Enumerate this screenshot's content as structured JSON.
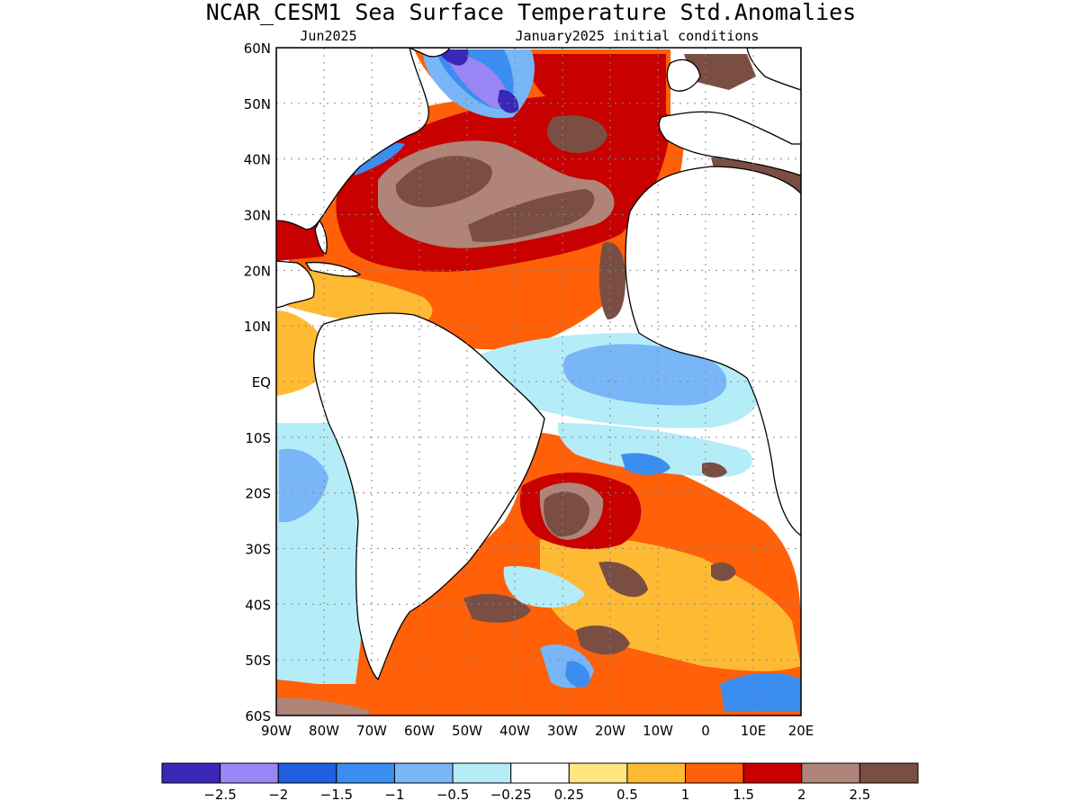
{
  "title": "NCAR_CESM1 Sea Surface Temperature Std.Anomalies",
  "subtitle_left": "Jun2025",
  "subtitle_right": "January2025 initial conditions",
  "map": {
    "lon_range": [
      -90,
      20
    ],
    "lat_range": [
      -60,
      60
    ],
    "lat_labels": [
      {
        "lat": 60,
        "text": "60N"
      },
      {
        "lat": 50,
        "text": "50N"
      },
      {
        "lat": 40,
        "text": "40N"
      },
      {
        "lat": 30,
        "text": "30N"
      },
      {
        "lat": 20,
        "text": "20N"
      },
      {
        "lat": 10,
        "text": "10N"
      },
      {
        "lat": 0,
        "text": "EQ"
      },
      {
        "lat": -10,
        "text": "10S"
      },
      {
        "lat": -20,
        "text": "20S"
      },
      {
        "lat": -30,
        "text": "30S"
      },
      {
        "lat": -40,
        "text": "40S"
      },
      {
        "lat": -50,
        "text": "50S"
      },
      {
        "lat": -60,
        "text": "60S"
      }
    ],
    "lon_labels": [
      {
        "lon": -90,
        "text": "90W"
      },
      {
        "lon": -80,
        "text": "80W"
      },
      {
        "lon": -70,
        "text": "70W"
      },
      {
        "lon": -60,
        "text": "60W"
      },
      {
        "lon": -50,
        "text": "50W"
      },
      {
        "lon": -40,
        "text": "40W"
      },
      {
        "lon": -30,
        "text": "30W"
      },
      {
        "lon": -20,
        "text": "20W"
      },
      {
        "lon": -10,
        "text": "10W"
      },
      {
        "lon": 0,
        "text": "0"
      },
      {
        "lon": 10,
        "text": "10E"
      },
      {
        "lon": 20,
        "text": "20E"
      }
    ],
    "gridlines": "dotted"
  },
  "colorbar": {
    "colors": [
      "#3a27b8",
      "#9b86f5",
      "#1f5fe0",
      "#3c8df0",
      "#78b6f8",
      "#b4ecf8",
      "#ffffff",
      "#ffe680",
      "#ffba34",
      "#ff6008",
      "#c80000",
      "#b08478",
      "#7a4e43"
    ],
    "labels": [
      "-2.5",
      "-2",
      "-1.5",
      "-1",
      "-0.5",
      "-0.25",
      "0.25",
      "0.5",
      "1",
      "1.5",
      "2",
      "2.5"
    ]
  },
  "chart_data": {
    "type": "heatmap",
    "title": "NCAR_CESM1 Sea Surface Temperature Std.Anomalies",
    "subtitle": "Jun2025",
    "note": "January2025 initial conditions",
    "x_range": [
      -90,
      20
    ],
    "y_range": [
      -60,
      60
    ],
    "levels": [
      -2.5,
      -2,
      -1.5,
      -1,
      -0.5,
      -0.25,
      0.25,
      0.5,
      1,
      1.5,
      2,
      2.5
    ],
    "anomaly_regions": [
      {
        "lon": -45,
        "lat": 35,
        "rx": 16,
        "ry": 7,
        "value": 2.7
      },
      {
        "lon": -30,
        "lat": 30,
        "rx": 14,
        "ry": 6,
        "value": 2.6
      },
      {
        "lon": -35,
        "lat": 33,
        "rx": 36,
        "ry": 14,
        "value": 2.1
      },
      {
        "lon": -25,
        "lat": 18,
        "rx": 30,
        "ry": 8,
        "value": 1.3
      },
      {
        "lon": -17,
        "lat": 20,
        "rx": 3,
        "ry": 6,
        "value": 2.7
      },
      {
        "lon": -86,
        "lat": 25,
        "rx": 5,
        "ry": 4,
        "value": 2.1
      },
      {
        "lon": -42,
        "lat": 53,
        "rx": 5,
        "ry": 4,
        "value": -2.1
      },
      {
        "lon": 7,
        "lat": 54,
        "rx": 8,
        "ry": 3,
        "value": 2.6
      },
      {
        "lon": 5,
        "lat": 39,
        "rx": 8,
        "ry": 3,
        "value": 2.6
      },
      {
        "lon": -20,
        "lat": 2,
        "rx": 14,
        "ry": 5,
        "value": -0.8
      },
      {
        "lon": -35,
        "lat": -23,
        "rx": 8,
        "ry": 6,
        "value": 2.7
      },
      {
        "lon": -25,
        "lat": -25,
        "rx": 22,
        "ry": 10,
        "value": 1.6
      },
      {
        "lon": -10,
        "lat": -12,
        "rx": 22,
        "ry": 5,
        "value": -0.7
      },
      {
        "lon": 3,
        "lat": -15,
        "rx": 3,
        "ry": 2,
        "value": 2.6
      },
      {
        "lon": 4,
        "lat": -34,
        "rx": 3,
        "ry": 2,
        "value": 2.6
      },
      {
        "lon": -15,
        "lat": -35,
        "rx": 6,
        "ry": 3,
        "value": 2.6
      },
      {
        "lon": -40,
        "lat": -40,
        "rx": 7,
        "ry": 3,
        "value": 2.6
      },
      {
        "lon": -20,
        "lat": -47,
        "rx": 6,
        "ry": 3,
        "value": 2.6
      },
      {
        "lon": -80,
        "lat": -20,
        "rx": 10,
        "ry": 14,
        "value": -0.6
      },
      {
        "lon": -25,
        "lat": -55,
        "rx": 6,
        "ry": 4,
        "value": -1.3
      },
      {
        "lon": -75,
        "lat": -58,
        "rx": 15,
        "ry": 2,
        "value": 1.7
      }
    ]
  }
}
